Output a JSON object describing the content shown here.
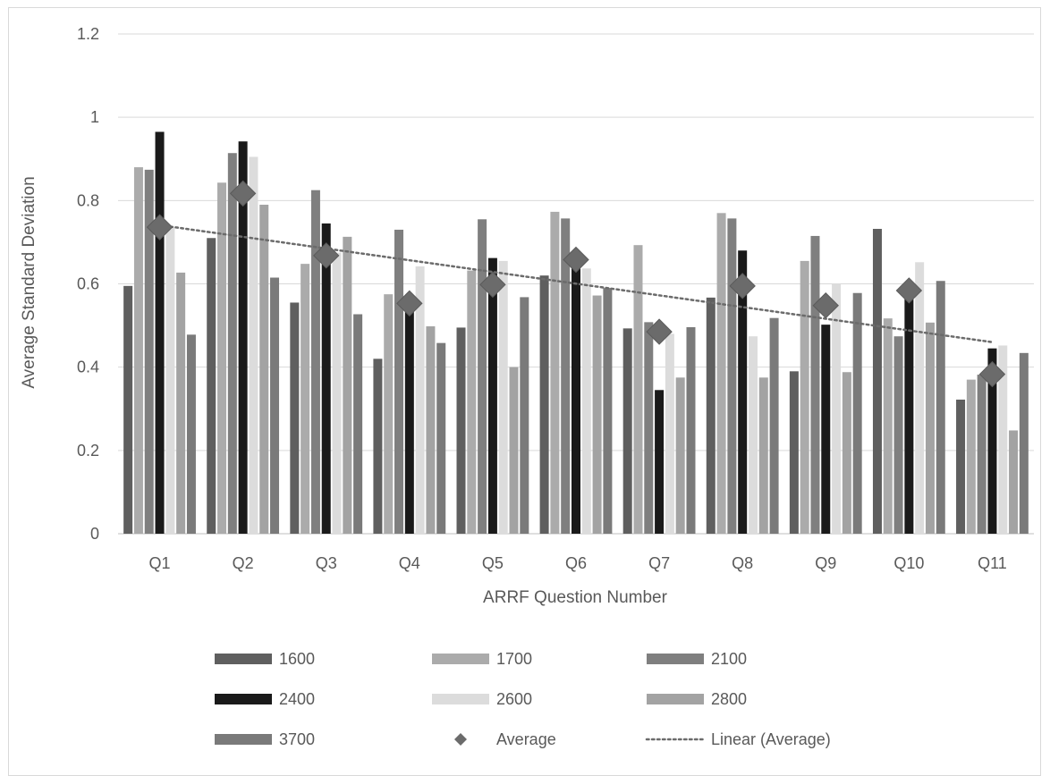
{
  "chart_data": {
    "type": "bar",
    "title": "",
    "xlabel": "ARRF Question Number",
    "ylabel": "Average Standard Deviation",
    "ylim": [
      0,
      1.2
    ],
    "yticks": [
      "0",
      "0.2",
      "0.4",
      "0.6",
      "0.8",
      "1",
      "1.2"
    ],
    "grid": "horizontal",
    "legend_position": "bottom",
    "categories": [
      "Q1",
      "Q2",
      "Q3",
      "Q4",
      "Q5",
      "Q6",
      "Q7",
      "Q8",
      "Q9",
      "Q10",
      "Q11"
    ],
    "series": [
      {
        "name": "1600",
        "color": "#5f5f5f",
        "values": [
          0.595,
          0.71,
          0.555,
          0.42,
          0.495,
          0.62,
          0.493,
          0.567,
          0.39,
          0.732,
          0.322
        ]
      },
      {
        "name": "1700",
        "color": "#ababab",
        "values": [
          0.88,
          0.843,
          0.648,
          0.575,
          0.632,
          0.773,
          0.693,
          0.77,
          0.655,
          0.517,
          0.37
        ]
      },
      {
        "name": "2100",
        "color": "#7f7f7f",
        "values": [
          0.874,
          0.914,
          0.825,
          0.73,
          0.755,
          0.757,
          0.508,
          0.757,
          0.715,
          0.474,
          0.382
        ]
      },
      {
        "name": "2400",
        "color": "#1a1a1a",
        "values": [
          0.965,
          0.942,
          0.745,
          0.545,
          0.662,
          0.655,
          0.345,
          0.68,
          0.502,
          0.57,
          0.445
        ]
      },
      {
        "name": "2600",
        "color": "#dcdcdc",
        "values": [
          0.735,
          0.905,
          0.675,
          0.642,
          0.655,
          0.637,
          0.48,
          0.474,
          0.6,
          0.652,
          0.452
        ]
      },
      {
        "name": "2800",
        "color": "#a3a3a3",
        "values": [
          0.627,
          0.79,
          0.713,
          0.498,
          0.4,
          0.572,
          0.375,
          0.375,
          0.388,
          0.507,
          0.248
        ]
      },
      {
        "name": "3700",
        "color": "#7a7a7a",
        "values": [
          0.478,
          0.615,
          0.527,
          0.458,
          0.568,
          0.59,
          0.496,
          0.518,
          0.578,
          0.607,
          0.434
        ]
      }
    ],
    "average": {
      "name": "Average",
      "color": "#6b6b6b",
      "values": [
        0.736,
        0.817,
        0.668,
        0.553,
        0.598,
        0.658,
        0.485,
        0.595,
        0.548,
        0.584,
        0.383
      ]
    },
    "trendline": {
      "name": "Linear (Average)",
      "color": "#6b6b6b",
      "style": "dotted",
      "start": 0.741,
      "end": 0.46
    }
  }
}
